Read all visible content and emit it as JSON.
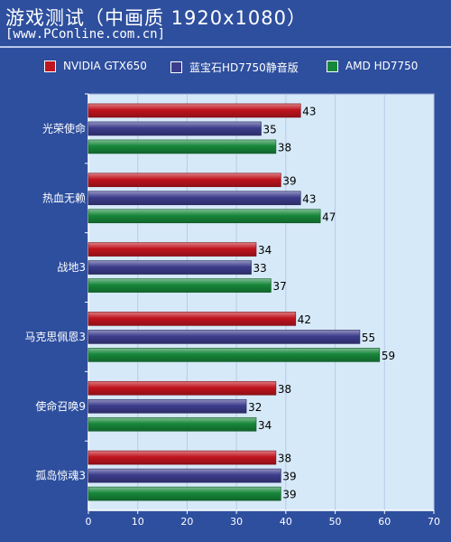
{
  "header": {
    "title": "游戏测试（中画质 1920x1080）",
    "subtitle": "[www.PConline.com.cn]"
  },
  "chart_data": {
    "type": "bar",
    "orientation": "horizontal",
    "categories": [
      "光荣使命",
      "热血无赖",
      "战地3",
      "马克思佩恩3",
      "使命召唤9",
      "孤岛惊魂3"
    ],
    "series": [
      {
        "name": "NVIDIA GTX650",
        "color": "#c0141e",
        "values": [
          43,
          39,
          34,
          42,
          38,
          38
        ]
      },
      {
        "name": "蓝宝石HD7750静音版",
        "color": "#3c3c8c",
        "values": [
          35,
          43,
          33,
          55,
          32,
          39
        ]
      },
      {
        "name": "AMD HD7750",
        "color": "#17873a",
        "values": [
          38,
          47,
          37,
          59,
          34,
          39
        ]
      }
    ],
    "xlim": [
      0,
      70
    ],
    "xticks": [
      0,
      10,
      20,
      30,
      40,
      50,
      60,
      70
    ],
    "grid": true,
    "legend_position": "top",
    "plot_background": "#d6e9f8"
  }
}
